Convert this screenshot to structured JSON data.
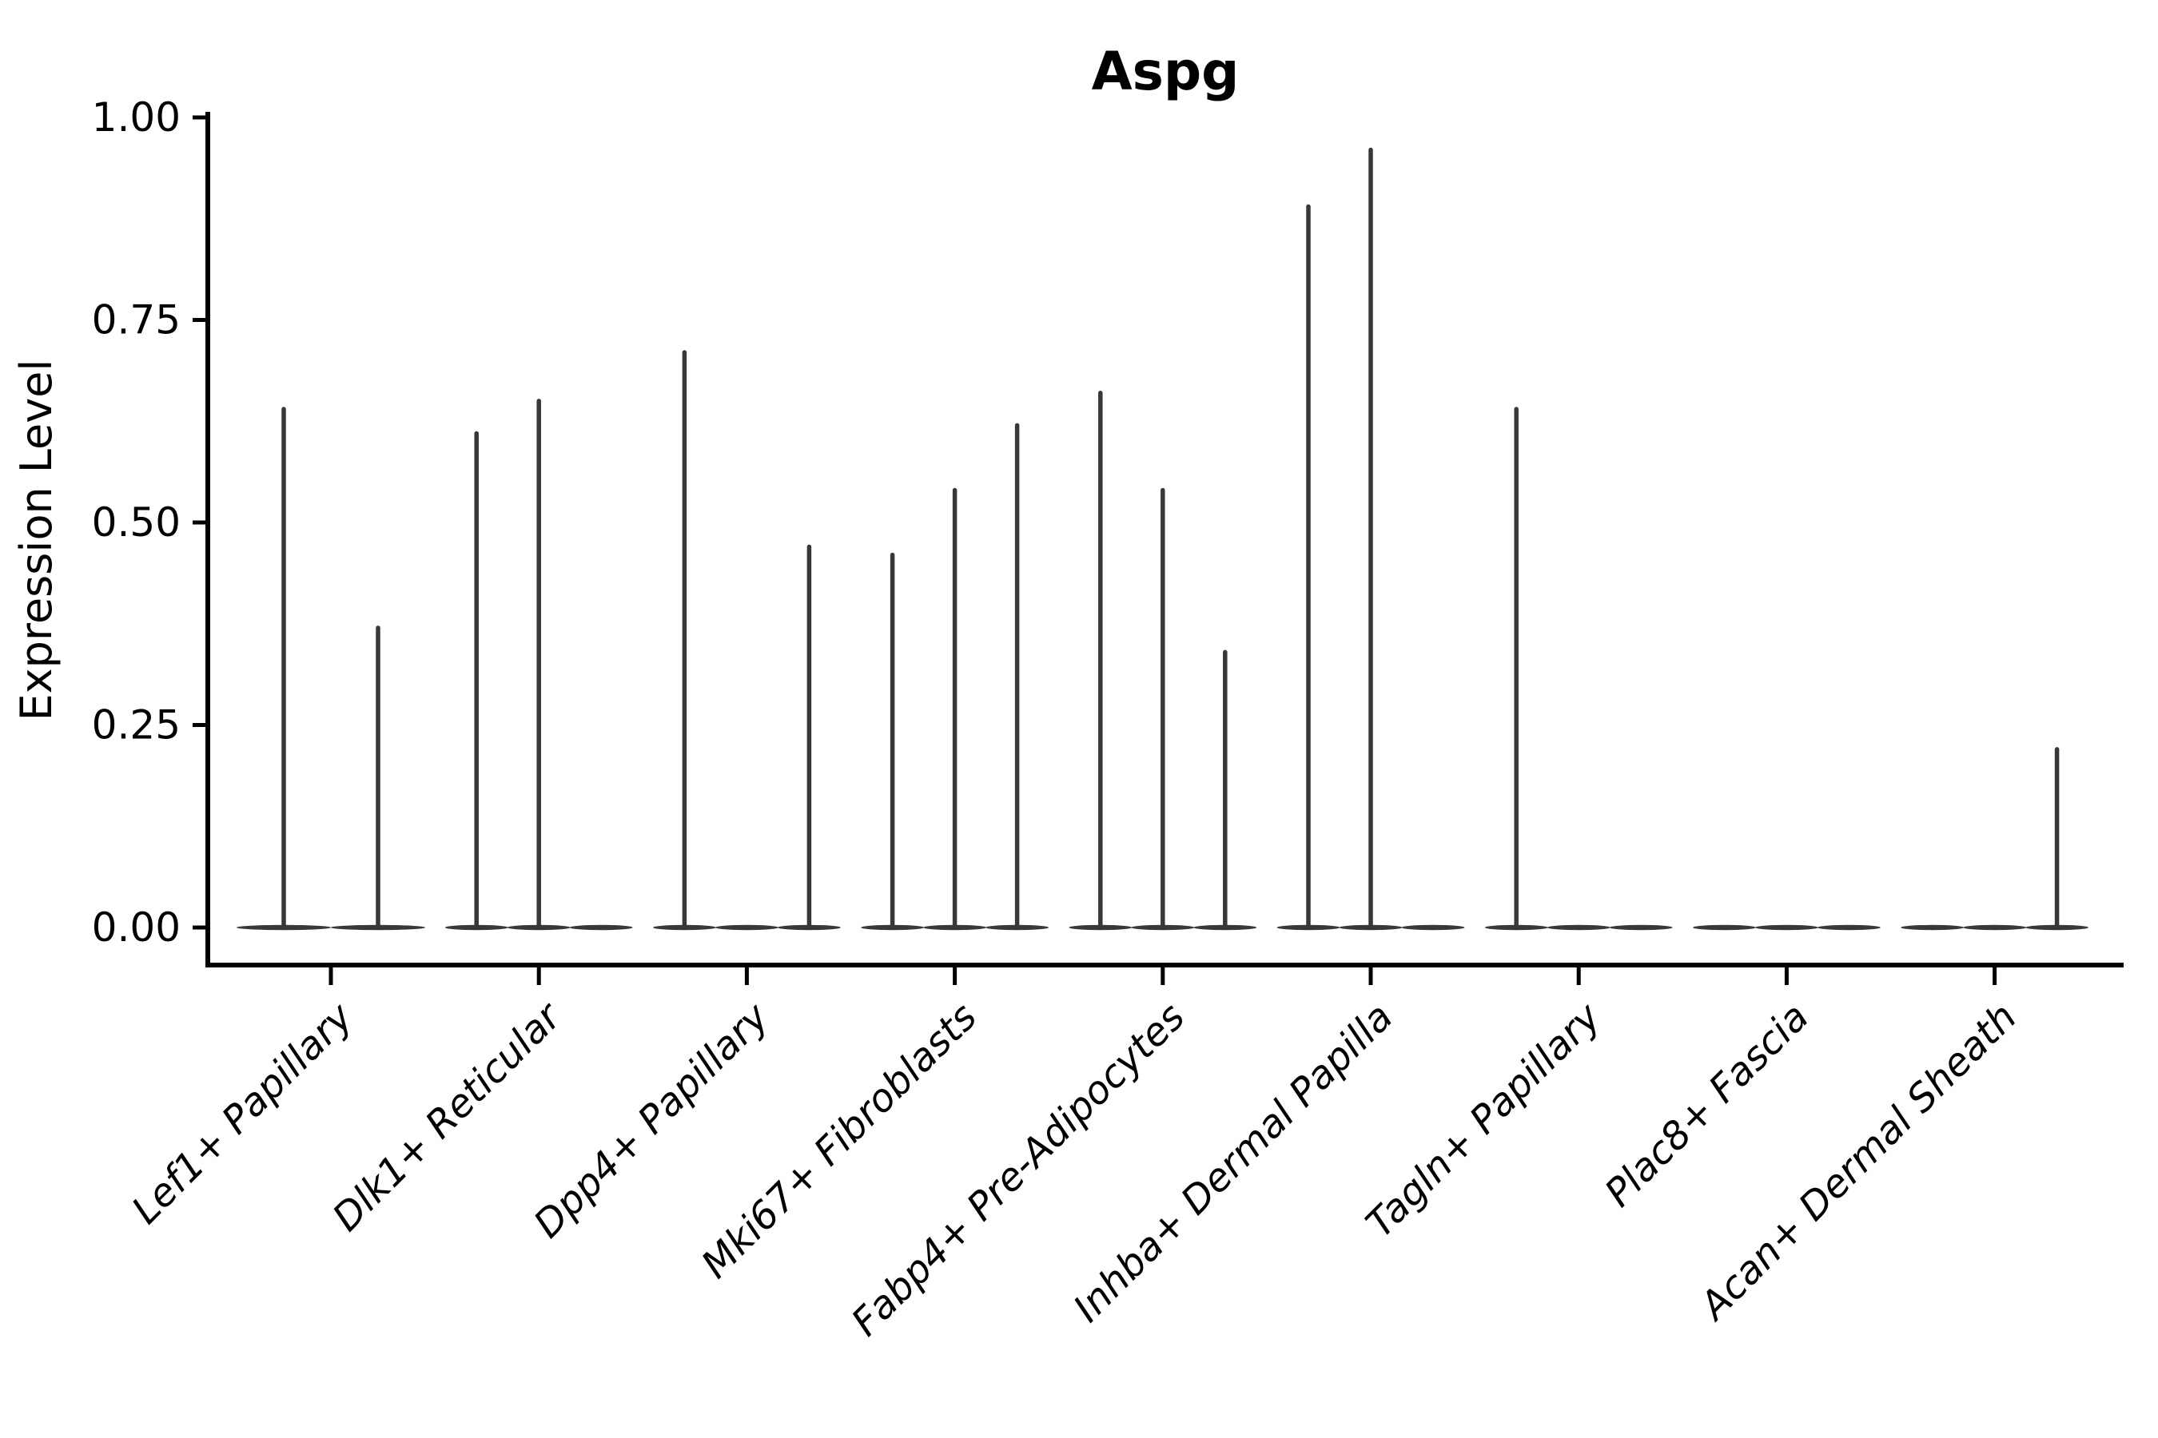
{
  "figure": {
    "background": "#ffffff"
  },
  "chart_data": {
    "type": "violin",
    "title": "Aspg",
    "ylabel": "Expression Level",
    "xlabel": "",
    "ylim": [
      0.0,
      1.0
    ],
    "yticks": [
      0.0,
      0.25,
      0.5,
      0.75,
      1.0
    ],
    "ytick_labels": [
      "0.00",
      "0.25",
      "0.50",
      "0.75",
      "1.00"
    ],
    "grid": false,
    "legend": "none",
    "categories": [
      "Lef1+ Papillary",
      "Dlk1+ Reticular",
      "Dpp4+ Papillary",
      "Mki67+ Fibroblasts",
      "Fabp4+ Pre-Adipocytes",
      "Inhba+ Dermal Papilla",
      "Tagln+ Papillary",
      "Plac8+ Fascia",
      "Acan+ Dermal Sheath"
    ],
    "violins": [
      {
        "category": "Lef1+ Papillary",
        "slot_offsets": [
          -59,
          59
        ],
        "peak_values": [
          0.64,
          0.37
        ]
      },
      {
        "category": "Dlk1+ Reticular",
        "slot_offsets": [
          -78,
          0,
          78
        ],
        "peak_values": [
          0.61,
          0.65,
          0
        ]
      },
      {
        "category": "Dpp4+ Papillary",
        "slot_offsets": [
          -78,
          0,
          78
        ],
        "peak_values": [
          0.71,
          0,
          0.47
        ]
      },
      {
        "category": "Mki67+ Fibroblasts",
        "slot_offsets": [
          -78,
          0,
          78
        ],
        "peak_values": [
          0.46,
          0.54,
          0.62
        ]
      },
      {
        "category": "Fabp4+ Pre-Adipocytes",
        "slot_offsets": [
          -78,
          0,
          78
        ],
        "peak_values": [
          0.66,
          0.54,
          0.34
        ]
      },
      {
        "category": "Inhba+ Dermal Papilla",
        "slot_offsets": [
          -78,
          0,
          78
        ],
        "peak_values": [
          0.89,
          0.96,
          0
        ]
      },
      {
        "category": "Tagln+ Papillary",
        "slot_offsets": [
          -78,
          0,
          78
        ],
        "peak_values": [
          0.64,
          0,
          0
        ]
      },
      {
        "category": "Plac8+ Fascia",
        "slot_offsets": [
          -78,
          0,
          78
        ],
        "peak_values": [
          0,
          0,
          0
        ]
      },
      {
        "category": "Acan+ Dermal Sheath",
        "slot_offsets": [
          -78,
          0,
          78
        ],
        "peak_values": [
          0,
          0,
          0.22
        ]
      }
    ],
    "style": {
      "violin_color": "#383838",
      "axis_color": "#000000",
      "background": "#ffffff"
    }
  }
}
